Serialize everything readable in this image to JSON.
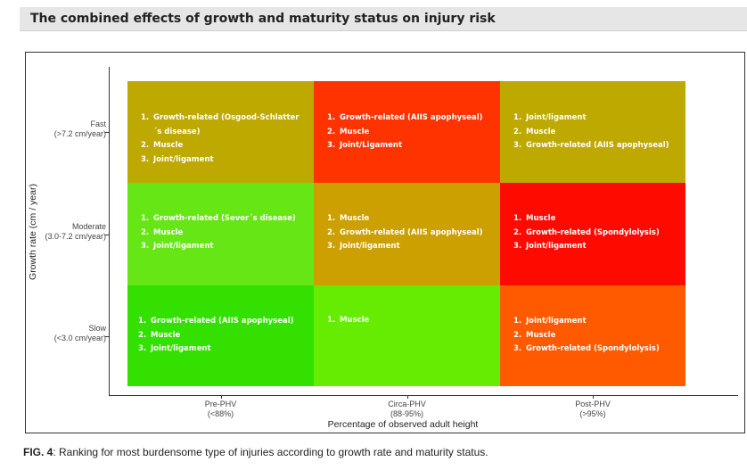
{
  "header": {
    "title": "The combined effects of growth and maturity status on injury risk"
  },
  "caption": {
    "label": "FIG. 4",
    "text": ": Ranking for most burdensome type of injuries according to growth rate and maturity status."
  },
  "chart_data": {
    "type": "heatmap",
    "title": "",
    "xlabel": "Percentage of observed adult height",
    "ylabel": "Growth rate (cm / year)",
    "x_categories": [
      {
        "name": "Pre-PHV",
        "sub": "(<88%)"
      },
      {
        "name": "Circa-PHV",
        "sub": "(88-95%)"
      },
      {
        "name": "Post-PHV",
        "sub": "(>95%)"
      }
    ],
    "y_categories": [
      {
        "name": "Fast",
        "sub": "(>7.2 cm/year)"
      },
      {
        "name": "Moderate",
        "sub": "(3.0-7.2 cm/year)"
      },
      {
        "name": "Slow",
        "sub": "(<3.0 cm/year)"
      }
    ],
    "cells": [
      {
        "row": 0,
        "col": 0,
        "color": "#bda900",
        "items": [
          "Growth-related (Osgood-Schlatter´s disease)",
          "Muscle",
          "Joint/ligament"
        ]
      },
      {
        "row": 0,
        "col": 1,
        "color": "#ff3300",
        "items": [
          "Growth-related (AIIS apophyseal)",
          "Muscle",
          "Joint/Ligament"
        ]
      },
      {
        "row": 0,
        "col": 2,
        "color": "#bda900",
        "items": [
          "Joint/ligament",
          "Muscle",
          "Growth-related (AIIS apophyseal)"
        ]
      },
      {
        "row": 1,
        "col": 0,
        "color": "#66e615",
        "items": [
          "Growth-related (Sever´s disease)",
          "Muscle",
          "Joint/ligament"
        ]
      },
      {
        "row": 1,
        "col": 1,
        "color": "#cca000",
        "items": [
          "Muscle",
          "Growth-related (AIIS apophyseal)",
          "Joint/ligament"
        ]
      },
      {
        "row": 1,
        "col": 2,
        "color": "#ff0a00",
        "items": [
          "Muscle",
          "Growth-related (Spondylolysis)",
          "Joint/ligament"
        ]
      },
      {
        "row": 2,
        "col": 0,
        "color": "#33e000",
        "items": [
          "Growth-related (AIIS apophyseal)",
          "Muscle",
          "Joint/ligament"
        ]
      },
      {
        "row": 2,
        "col": 1,
        "color": "#66ec00",
        "items": [
          "Muscle"
        ]
      },
      {
        "row": 2,
        "col": 2,
        "color": "#ff5a00",
        "items": [
          "Joint/ligament",
          "Muscle",
          "Growth-related (Spondylolysis)"
        ]
      }
    ],
    "grid": false,
    "legend": "none"
  }
}
